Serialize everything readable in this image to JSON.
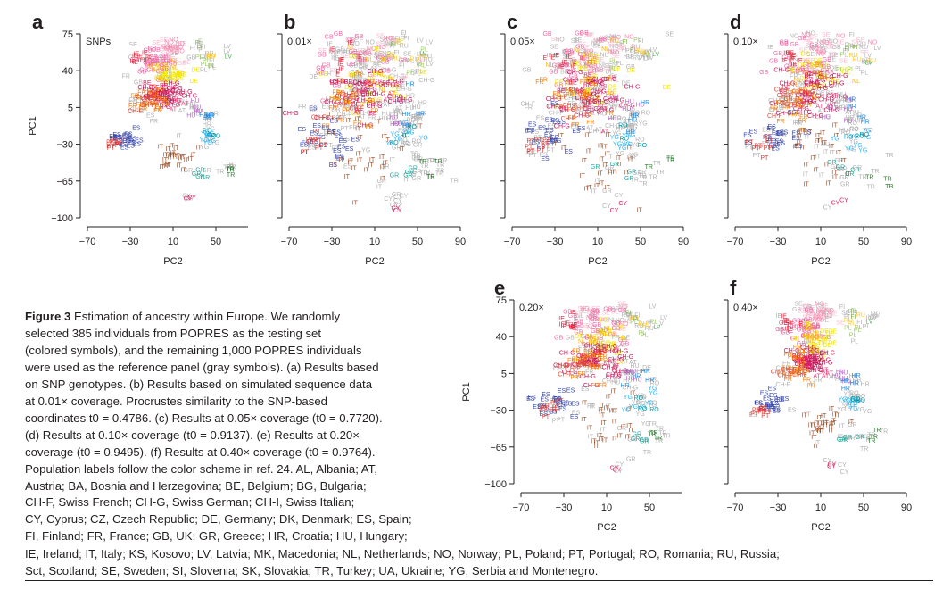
{
  "figure": {
    "axis_x_label": "PC2",
    "axis_y_label": "PC1",
    "x_ticks": [
      "−70",
      "−30",
      "10",
      "50",
      "90"
    ],
    "y_ticks": [
      "75",
      "40",
      "5",
      "−30",
      "−65",
      "−100"
    ],
    "panels": [
      {
        "id": "a",
        "letter": "a",
        "title": "SNPs",
        "coverage": null,
        "gray_density": 0.35
      },
      {
        "id": "b",
        "letter": "b",
        "title": "0.01×",
        "coverage": 0.01,
        "gray_density": 1.0
      },
      {
        "id": "c",
        "letter": "c",
        "title": "0.05×",
        "coverage": 0.05,
        "gray_density": 0.85
      },
      {
        "id": "d",
        "letter": "d",
        "title": "0.10×",
        "coverage": 0.1,
        "gray_density": 0.6
      },
      {
        "id": "e",
        "letter": "e",
        "title": "0.20×",
        "coverage": 0.2,
        "gray_density": 0.55
      },
      {
        "id": "f",
        "letter": "f",
        "title": "0.40×",
        "coverage": 0.4,
        "gray_density": 0.45
      }
    ],
    "population_colors": {
      "IE": "#e8263c",
      "GB": "#f06aa5",
      "FR": "#ff7f00",
      "CH-F": "#d94f3a",
      "CH-G": "#c2185b",
      "DE": "#f3e600",
      "NL": "#ffb300",
      "BE": "#e91e63",
      "NO": "#f48fb1",
      "SE": "#f8bbd0",
      "FI": "#7cb342",
      "LV": "#4caf50",
      "PL": "#9ccc65",
      "CZ": "#cddc39",
      "HU": "#ba68c8",
      "AT": "#ec407a",
      "ES": "#3949ab",
      "PT": "#e53935",
      "IT": "#a0522d",
      "CY": "#d81b60",
      "GR": "#26a69a",
      "HR": "#1e88e5",
      "YG": "#29b6f6",
      "RO": "#0097a7",
      "BA": "#42a5f5",
      "TR": "#2e7d32",
      "RU": "#ffca28",
      "UA": "#ffd54f",
      "reference": "#b3b3b3"
    }
  },
  "caption": {
    "bold_lead": "Figure 3",
    "lines": [
      "Estimation of ancestry within Europe. We randomly",
      "selected 385 individuals from POPRES as the testing set",
      "(colored symbols), and the remaining 1,000 POPRES individuals",
      "were used as the reference panel (gray symbols). (a) Results based",
      "on SNP genotypes. (b) Results based on simulated sequence data",
      "at 0.01× coverage. Procrustes similarity to the SNP-based",
      "coordinates t0 = 0.4786. (c) Results at 0.05× coverage (t0 = 0.7720).",
      "(d) Results at 0.10× coverage (t0 = 0.9137). (e) Results at 0.20×",
      "coverage (t0 = 0.9495). (f) Results at 0.40× coverage (t0 = 0.9764).",
      "Population labels follow the color scheme in ref. 24. AL, Albania; AT,",
      "Austria; BA, Bosnia and Herzegovina; BE, Belgium; BG, Bulgaria;",
      "CH-F, Swiss French; CH-G, Swiss German; CH-I, Swiss Italian;",
      "CY, Cyprus; CZ, Czech Republic; DE, Germany; DK, Denmark; ES, Spain;",
      "FI, Finland; FR, France; GB, UK; GR, Greece; HR, Croatia; HU, Hungary;"
    ],
    "wide_lines": [
      "IE, Ireland; IT, Italy; KS, Kosovo; LV, Latvia; MK, Macedonia; NL, Netherlands; NO, Norway; PL, Poland; PT, Portugal; RO, Romania; RU, Russia;",
      "Sct, Scotland; SE, Sweden; SI, Slovenia; SK, Slovakia; TR, Turkey; UA, Ukraine; YG, Serbia and Montenegro."
    ]
  }
}
